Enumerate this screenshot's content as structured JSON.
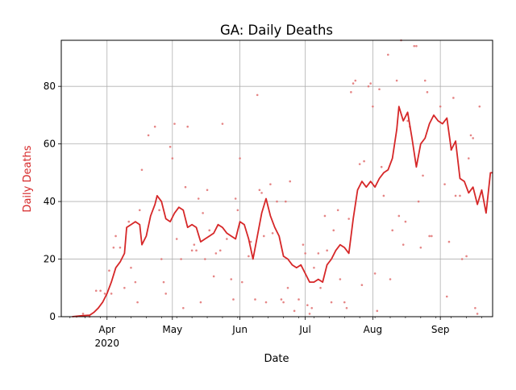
{
  "chart_data": {
    "type": "line",
    "title": "GA: Daily Deaths",
    "xlabel": "Date",
    "ylabel": "Daily Deaths",
    "x_range": [
      "2020-03-11",
      "2020-09-25"
    ],
    "ylim": [
      0,
      96
    ],
    "x_ticks": [
      {
        "date": "2020-04-01",
        "label": "Apr",
        "sublabel": "2020"
      },
      {
        "date": "2020-05-01",
        "label": "May",
        "sublabel": ""
      },
      {
        "date": "2020-06-01",
        "label": "Jun",
        "sublabel": ""
      },
      {
        "date": "2020-07-01",
        "label": "Jul",
        "sublabel": ""
      },
      {
        "date": "2020-08-01",
        "label": "Aug",
        "sublabel": ""
      },
      {
        "date": "2020-09-01",
        "label": "Sep",
        "sublabel": ""
      }
    ],
    "y_ticks": [
      0,
      20,
      40,
      60,
      80
    ],
    "grid": true,
    "colors": {
      "line": "#d62728",
      "points": "#e07070",
      "grid": "#b0b0b0",
      "ylabel": "#d62728"
    },
    "series": [
      {
        "kind": "line",
        "points": [
          [
            "2020-03-16",
            0
          ],
          [
            "2020-03-20",
            0.3
          ],
          [
            "2020-03-24",
            0.5
          ],
          [
            "2020-03-26",
            1.5
          ],
          [
            "2020-03-28",
            3
          ],
          [
            "2020-03-30",
            5
          ],
          [
            "2020-04-01",
            8
          ],
          [
            "2020-04-03",
            12
          ],
          [
            "2020-04-05",
            17
          ],
          [
            "2020-04-07",
            19
          ],
          [
            "2020-04-09",
            22
          ],
          [
            "2020-04-10",
            31
          ],
          [
            "2020-04-12",
            32
          ],
          [
            "2020-04-14",
            33
          ],
          [
            "2020-04-16",
            32
          ],
          [
            "2020-04-17",
            25
          ],
          [
            "2020-04-19",
            28
          ],
          [
            "2020-04-21",
            35
          ],
          [
            "2020-04-23",
            39
          ],
          [
            "2020-04-24",
            42
          ],
          [
            "2020-04-26",
            40
          ],
          [
            "2020-04-28",
            34
          ],
          [
            "2020-04-30",
            33
          ],
          [
            "2020-05-02",
            36
          ],
          [
            "2020-05-04",
            38
          ],
          [
            "2020-05-06",
            37
          ],
          [
            "2020-05-08",
            31
          ],
          [
            "2020-05-10",
            32
          ],
          [
            "2020-05-12",
            31
          ],
          [
            "2020-05-14",
            26
          ],
          [
            "2020-05-16",
            27
          ],
          [
            "2020-05-18",
            28
          ],
          [
            "2020-05-20",
            29
          ],
          [
            "2020-05-22",
            32
          ],
          [
            "2020-05-24",
            31
          ],
          [
            "2020-05-26",
            29
          ],
          [
            "2020-05-28",
            28
          ],
          [
            "2020-05-30",
            27
          ],
          [
            "2020-06-01",
            33
          ],
          [
            "2020-06-03",
            32
          ],
          [
            "2020-06-05",
            27
          ],
          [
            "2020-06-07",
            20
          ],
          [
            "2020-06-09",
            28
          ],
          [
            "2020-06-11",
            36
          ],
          [
            "2020-06-13",
            41
          ],
          [
            "2020-06-15",
            35
          ],
          [
            "2020-06-17",
            31
          ],
          [
            "2020-06-19",
            28
          ],
          [
            "2020-06-21",
            21
          ],
          [
            "2020-06-23",
            20
          ],
          [
            "2020-06-25",
            18
          ],
          [
            "2020-06-27",
            17
          ],
          [
            "2020-06-29",
            18
          ],
          [
            "2020-07-01",
            15
          ],
          [
            "2020-07-03",
            12
          ],
          [
            "2020-07-05",
            12
          ],
          [
            "2020-07-07",
            13
          ],
          [
            "2020-07-09",
            12
          ],
          [
            "2020-07-11",
            18
          ],
          [
            "2020-07-13",
            20
          ],
          [
            "2020-07-15",
            23
          ],
          [
            "2020-07-17",
            25
          ],
          [
            "2020-07-19",
            24
          ],
          [
            "2020-07-21",
            22
          ],
          [
            "2020-07-23",
            34
          ],
          [
            "2020-07-25",
            44
          ],
          [
            "2020-07-27",
            47
          ],
          [
            "2020-07-29",
            45
          ],
          [
            "2020-07-31",
            47
          ],
          [
            "2020-08-02",
            45
          ],
          [
            "2020-08-04",
            48
          ],
          [
            "2020-08-06",
            50
          ],
          [
            "2020-08-08",
            51
          ],
          [
            "2020-08-10",
            55
          ],
          [
            "2020-08-12",
            65
          ],
          [
            "2020-08-13",
            73
          ],
          [
            "2020-08-15",
            68
          ],
          [
            "2020-08-17",
            71
          ],
          [
            "2020-08-19",
            62
          ],
          [
            "2020-08-21",
            52
          ],
          [
            "2020-08-23",
            60
          ],
          [
            "2020-08-25",
            62
          ],
          [
            "2020-08-27",
            67
          ],
          [
            "2020-08-29",
            70
          ],
          [
            "2020-08-31",
            68
          ],
          [
            "2020-09-02",
            67
          ],
          [
            "2020-09-04",
            69
          ],
          [
            "2020-09-06",
            58
          ],
          [
            "2020-09-08",
            61
          ],
          [
            "2020-09-10",
            48
          ],
          [
            "2020-09-12",
            47
          ],
          [
            "2020-09-14",
            43
          ],
          [
            "2020-09-16",
            45
          ],
          [
            "2020-09-18",
            39
          ],
          [
            "2020-09-20",
            44
          ],
          [
            "2020-09-22",
            36
          ],
          [
            "2020-09-24",
            50
          ],
          [
            "2020-09-25",
            50
          ]
        ]
      },
      {
        "kind": "scatter",
        "points": [
          [
            "2020-03-18",
            0
          ],
          [
            "2020-03-21",
            1
          ],
          [
            "2020-03-24",
            0
          ],
          [
            "2020-03-27",
            9
          ],
          [
            "2020-03-29",
            9
          ],
          [
            "2020-03-31",
            8
          ],
          [
            "2020-04-02",
            16
          ],
          [
            "2020-04-03",
            8
          ],
          [
            "2020-04-04",
            24
          ],
          [
            "2020-04-05",
            28
          ],
          [
            "2020-04-07",
            24
          ],
          [
            "2020-04-09",
            10
          ],
          [
            "2020-04-11",
            33
          ],
          [
            "2020-04-12",
            17
          ],
          [
            "2020-04-14",
            12
          ],
          [
            "2020-04-15",
            5
          ],
          [
            "2020-04-16",
            37
          ],
          [
            "2020-04-17",
            51
          ],
          [
            "2020-04-20",
            63
          ],
          [
            "2020-04-23",
            66
          ],
          [
            "2020-04-25",
            37
          ],
          [
            "2020-04-26",
            20
          ],
          [
            "2020-04-27",
            12
          ],
          [
            "2020-04-28",
            8
          ],
          [
            "2020-04-30",
            59
          ],
          [
            "2020-05-01",
            55
          ],
          [
            "2020-05-02",
            67
          ],
          [
            "2020-05-03",
            27
          ],
          [
            "2020-05-05",
            20
          ],
          [
            "2020-05-06",
            3
          ],
          [
            "2020-05-07",
            45
          ],
          [
            "2020-05-08",
            66
          ],
          [
            "2020-05-10",
            23
          ],
          [
            "2020-05-11",
            25
          ],
          [
            "2020-05-12",
            23
          ],
          [
            "2020-05-13",
            41
          ],
          [
            "2020-05-14",
            5
          ],
          [
            "2020-05-15",
            36
          ],
          [
            "2020-05-16",
            20
          ],
          [
            "2020-05-17",
            44
          ],
          [
            "2020-05-18",
            30
          ],
          [
            "2020-05-20",
            14
          ],
          [
            "2020-05-21",
            22
          ],
          [
            "2020-05-23",
            23
          ],
          [
            "2020-05-24",
            67
          ],
          [
            "2020-05-26",
            27
          ],
          [
            "2020-05-28",
            13
          ],
          [
            "2020-05-29",
            6
          ],
          [
            "2020-05-30",
            41
          ],
          [
            "2020-05-31",
            37
          ],
          [
            "2020-06-01",
            55
          ],
          [
            "2020-06-02",
            12
          ],
          [
            "2020-06-05",
            21
          ],
          [
            "2020-06-06",
            26
          ],
          [
            "2020-06-08",
            6
          ],
          [
            "2020-06-09",
            77
          ],
          [
            "2020-06-10",
            44
          ],
          [
            "2020-06-11",
            43
          ],
          [
            "2020-06-12",
            28
          ],
          [
            "2020-06-13",
            5
          ],
          [
            "2020-06-15",
            46
          ],
          [
            "2020-06-16",
            29
          ],
          [
            "2020-06-18",
            40
          ],
          [
            "2020-06-20",
            6
          ],
          [
            "2020-06-21",
            5
          ],
          [
            "2020-06-22",
            40
          ],
          [
            "2020-06-23",
            10
          ],
          [
            "2020-06-24",
            47
          ],
          [
            "2020-06-26",
            2
          ],
          [
            "2020-06-28",
            6
          ],
          [
            "2020-06-30",
            25
          ],
          [
            "2020-07-01",
            22
          ],
          [
            "2020-07-02",
            4
          ],
          [
            "2020-07-03",
            1
          ],
          [
            "2020-07-04",
            3
          ],
          [
            "2020-07-05",
            17
          ],
          [
            "2020-07-07",
            22
          ],
          [
            "2020-07-08",
            10
          ],
          [
            "2020-07-10",
            35
          ],
          [
            "2020-07-11",
            23
          ],
          [
            "2020-07-13",
            5
          ],
          [
            "2020-07-14",
            30
          ],
          [
            "2020-07-16",
            37
          ],
          [
            "2020-07-17",
            13
          ],
          [
            "2020-07-19",
            5
          ],
          [
            "2020-07-20",
            3
          ],
          [
            "2020-07-21",
            34
          ],
          [
            "2020-07-22",
            78
          ],
          [
            "2020-07-23",
            81
          ],
          [
            "2020-07-24",
            82
          ],
          [
            "2020-07-26",
            53
          ],
          [
            "2020-07-27",
            11
          ],
          [
            "2020-07-28",
            54
          ],
          [
            "2020-07-30",
            80
          ],
          [
            "2020-07-31",
            81
          ],
          [
            "2020-08-01",
            73
          ],
          [
            "2020-08-02",
            15
          ],
          [
            "2020-08-03",
            2
          ],
          [
            "2020-08-04",
            79
          ],
          [
            "2020-08-05",
            52
          ],
          [
            "2020-08-06",
            42
          ],
          [
            "2020-08-08",
            91
          ],
          [
            "2020-08-09",
            13
          ],
          [
            "2020-08-10",
            30
          ],
          [
            "2020-08-12",
            82
          ],
          [
            "2020-08-13",
            35
          ],
          [
            "2020-08-14",
            96
          ],
          [
            "2020-08-15",
            25
          ],
          [
            "2020-08-16",
            33
          ],
          [
            "2020-08-17",
            68
          ],
          [
            "2020-08-18",
            66
          ],
          [
            "2020-08-20",
            94
          ],
          [
            "2020-08-21",
            94
          ],
          [
            "2020-08-22",
            40
          ],
          [
            "2020-08-23",
            24
          ],
          [
            "2020-08-24",
            49
          ],
          [
            "2020-08-25",
            82
          ],
          [
            "2020-08-26",
            78
          ],
          [
            "2020-08-27",
            28
          ],
          [
            "2020-08-28",
            28
          ],
          [
            "2020-09-01",
            73
          ],
          [
            "2020-09-03",
            46
          ],
          [
            "2020-09-04",
            7
          ],
          [
            "2020-09-05",
            26
          ],
          [
            "2020-09-06",
            58
          ],
          [
            "2020-09-07",
            76
          ],
          [
            "2020-09-08",
            42
          ],
          [
            "2020-09-10",
            42
          ],
          [
            "2020-09-11",
            20
          ],
          [
            "2020-09-13",
            21
          ],
          [
            "2020-09-14",
            55
          ],
          [
            "2020-09-15",
            63
          ],
          [
            "2020-09-16",
            62
          ],
          [
            "2020-09-17",
            3
          ],
          [
            "2020-09-18",
            1
          ],
          [
            "2020-09-19",
            73
          ]
        ]
      }
    ]
  }
}
